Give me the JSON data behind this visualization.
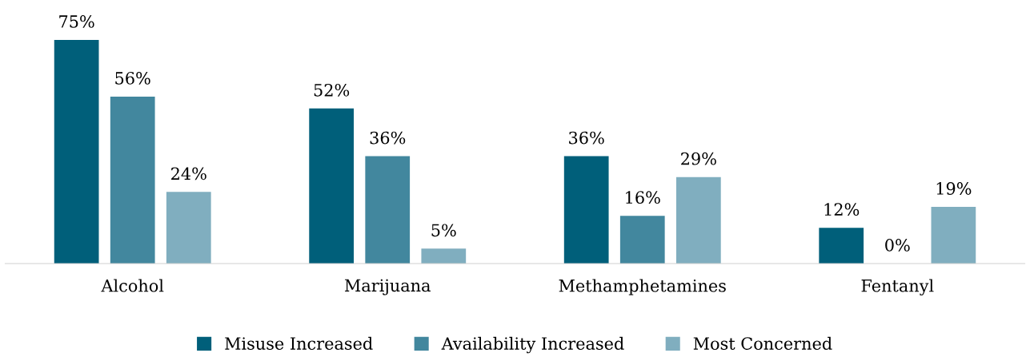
{
  "chart_data": {
    "type": "bar",
    "categories": [
      "Alcohol",
      "Marijuana",
      "Methamphetamines",
      "Fentanyl"
    ],
    "series": [
      {
        "name": "Misuse Increased",
        "color": "#005f7a",
        "values": [
          75,
          52,
          36,
          12
        ],
        "value_labels": [
          "75%",
          "52%",
          "36%",
          "12%"
        ]
      },
      {
        "name": "Availability Increased",
        "color": "#42879e",
        "values": [
          56,
          36,
          16,
          0
        ],
        "value_labels": [
          "56%",
          "36%",
          "16%",
          "0%"
        ]
      },
      {
        "name": "Most Concerned",
        "color": "#80aebf",
        "values": [
          24,
          5,
          29,
          19
        ],
        "value_labels": [
          "24%",
          "5%",
          "29%",
          "19%"
        ]
      }
    ],
    "legend": "bottom"
  }
}
